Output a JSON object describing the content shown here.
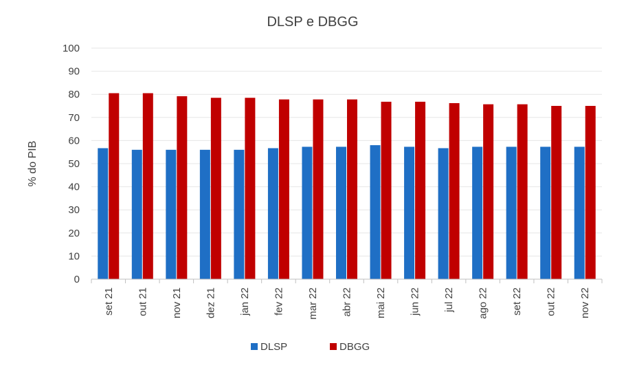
{
  "chart_data": {
    "type": "bar",
    "title": "DLSP e DBGG",
    "xlabel": "",
    "ylabel": "% do PIB",
    "ylim": [
      0,
      100
    ],
    "yticks": [
      "0",
      "10",
      "20",
      "30",
      "40",
      "50",
      "60",
      "70",
      "80",
      "90",
      "100"
    ],
    "categories": [
      "set 21",
      "out 21",
      "nov 21",
      "dez 21",
      "jan 22",
      "fev 22",
      "mar 22",
      "abr 22",
      "mai 22",
      "jun 22",
      "jul 22",
      "ago 22",
      "set 22",
      "out 22",
      "nov 22"
    ],
    "series": [
      {
        "name": "DLSP",
        "color": "#1f6fc5",
        "values": [
          56.7,
          56.0,
          56.0,
          56.0,
          56.0,
          56.7,
          57.3,
          57.3,
          58.0,
          57.3,
          56.7,
          57.3,
          57.3,
          57.3,
          57.3
        ]
      },
      {
        "name": "DBGG",
        "color": "#c00000",
        "values": [
          80.5,
          80.5,
          79.2,
          78.5,
          78.5,
          77.8,
          77.8,
          77.8,
          76.8,
          76.8,
          76.2,
          75.7,
          75.7,
          75.0,
          75.0
        ]
      }
    ],
    "grid": true,
    "legend_position": "bottom"
  }
}
